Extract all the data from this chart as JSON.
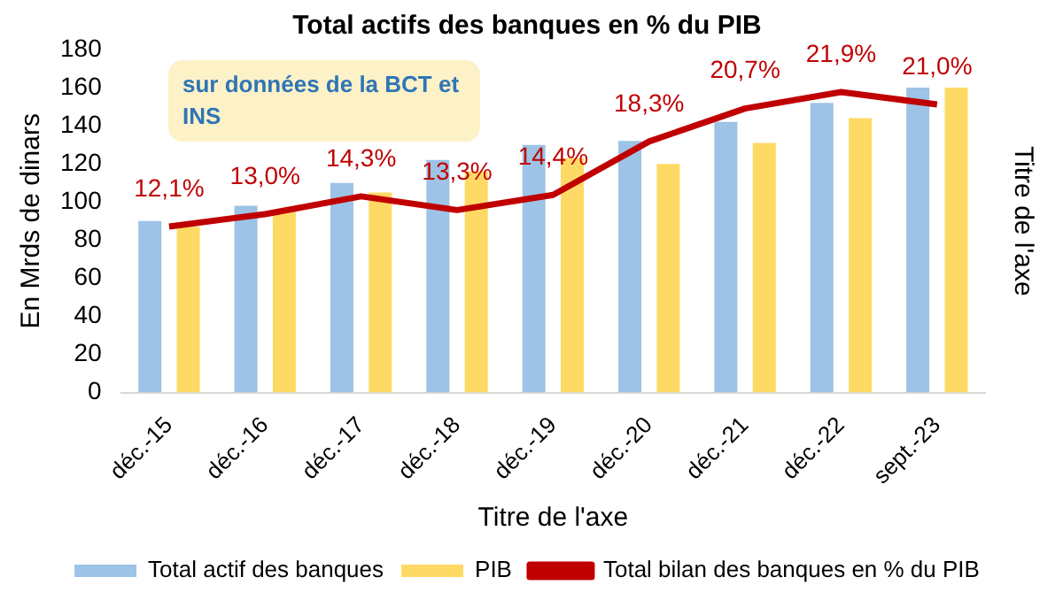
{
  "chart_data": {
    "type": "bar",
    "title": "Total actifs des banques en % du PIB",
    "xlabel": "Titre de l'axe",
    "ylabel": "En Mrds de dinars",
    "y2label": "Titre de l'axe",
    "annotations": [
      "sur données de la BCT et INS"
    ],
    "categories": [
      "déc.-15",
      "déc.-16",
      "déc.-17",
      "déc.-18",
      "déc.-19",
      "déc.-20",
      "déc.-21",
      "déc.-22",
      "sept.-23"
    ],
    "series": [
      {
        "name": "Total actif des banques",
        "color": "#9dc3e6",
        "values": [
          90,
          98,
          110,
          122,
          130,
          132,
          142,
          152,
          160
        ]
      },
      {
        "name": "PIB",
        "color": "#ffd966",
        "values": [
          87,
          95,
          105,
          116,
          123,
          120,
          131,
          144,
          160
        ]
      },
      {
        "name": "Total bilan des banques en % du PIB",
        "type": "line",
        "axis": "y2",
        "color": "#c00000",
        "values": [
          12.1,
          13.0,
          14.3,
          13.3,
          14.4,
          18.3,
          20.7,
          21.9,
          21.0
        ],
        "value_labels": [
          "12,1%",
          "13,0%",
          "14,3%",
          "13,3%",
          "14,4%",
          "18,3%",
          "20,7%",
          "21,9%",
          "21,0%"
        ]
      }
    ],
    "ylim": [
      0,
      180
    ],
    "yticks": [
      0,
      20,
      40,
      60,
      80,
      100,
      120,
      140,
      160,
      180
    ],
    "legend": "bottom",
    "marker": "none",
    "line_style": "solid",
    "grid": false
  }
}
